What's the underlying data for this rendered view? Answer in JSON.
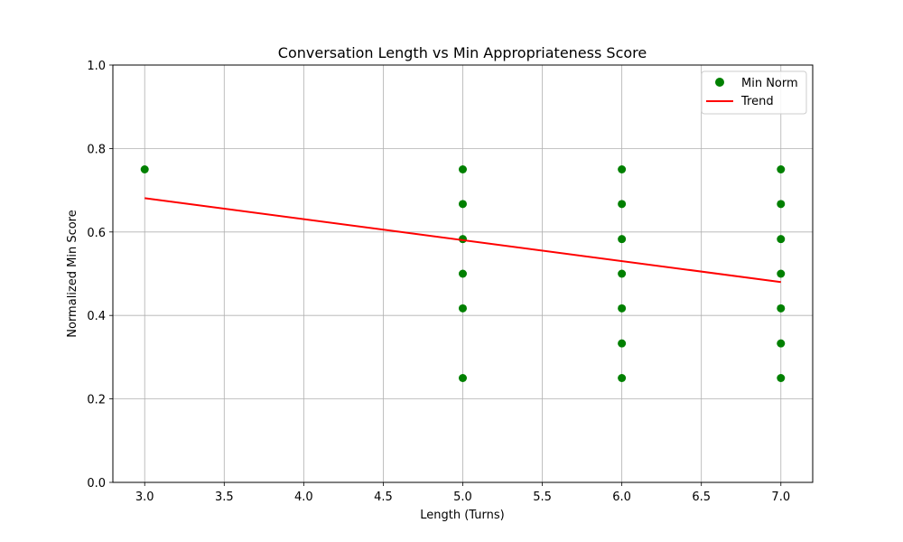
{
  "chart_data": {
    "type": "scatter",
    "title": "Conversation Length vs Min Appropriateness Score",
    "xlabel": "Length (Turns)",
    "ylabel": "Normalized Min Score",
    "xlim": [
      2.8,
      7.2
    ],
    "ylim": [
      0.0,
      1.0
    ],
    "xticks": [
      3.0,
      3.5,
      4.0,
      4.5,
      5.0,
      5.5,
      6.0,
      6.5,
      7.0
    ],
    "xtick_labels": [
      "3.0",
      "3.5",
      "4.0",
      "4.5",
      "5.0",
      "5.5",
      "6.0",
      "6.5",
      "7.0"
    ],
    "yticks": [
      0.0,
      0.2,
      0.4,
      0.6,
      0.8,
      1.0
    ],
    "ytick_labels": [
      "0.0",
      "0.2",
      "0.4",
      "0.6",
      "0.8",
      "1.0"
    ],
    "grid": true,
    "legend_position": "top-right",
    "series": [
      {
        "name": "Min Norm",
        "kind": "scatter",
        "color": "#008000",
        "points": [
          {
            "x": 3,
            "y": 0.75
          },
          {
            "x": 5,
            "y": 0.75
          },
          {
            "x": 5,
            "y": 0.667
          },
          {
            "x": 5,
            "y": 0.583
          },
          {
            "x": 5,
            "y": 0.5
          },
          {
            "x": 5,
            "y": 0.417
          },
          {
            "x": 5,
            "y": 0.25
          },
          {
            "x": 6,
            "y": 0.75
          },
          {
            "x": 6,
            "y": 0.667
          },
          {
            "x": 6,
            "y": 0.583
          },
          {
            "x": 6,
            "y": 0.5
          },
          {
            "x": 6,
            "y": 0.417
          },
          {
            "x": 6,
            "y": 0.333
          },
          {
            "x": 6,
            "y": 0.25
          },
          {
            "x": 7,
            "y": 0.75
          },
          {
            "x": 7,
            "y": 0.667
          },
          {
            "x": 7,
            "y": 0.583
          },
          {
            "x": 7,
            "y": 0.5
          },
          {
            "x": 7,
            "y": 0.417
          },
          {
            "x": 7,
            "y": 0.333
          },
          {
            "x": 7,
            "y": 0.25
          }
        ]
      },
      {
        "name": "Trend",
        "kind": "line",
        "color": "#ff0000",
        "points": [
          {
            "x": 3,
            "y": 0.681
          },
          {
            "x": 7,
            "y": 0.48
          }
        ]
      }
    ]
  }
}
